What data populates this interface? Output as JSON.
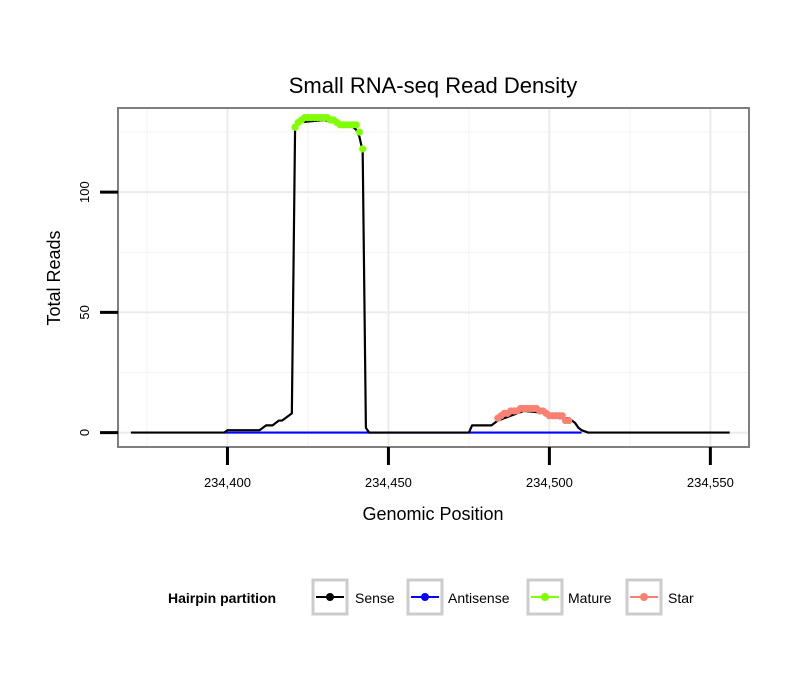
{
  "chart_data": {
    "type": "line",
    "title": "Small RNA-seq Read Density",
    "xlabel": "Genomic Position",
    "ylabel": "Total Reads",
    "xlim": [
      234366,
      234562
    ],
    "ylim": [
      -6,
      135
    ],
    "x_ticks": [
      234400,
      234450,
      234500,
      234550
    ],
    "x_tick_labels": [
      "234,400",
      "234,450",
      "234,500",
      "234,550"
    ],
    "y_ticks": [
      0,
      50,
      100
    ],
    "y_tick_labels": [
      "0",
      "50",
      "100"
    ],
    "x_minor_grid": [
      234375,
      234425,
      234475,
      234525
    ],
    "y_minor_grid": [
      25,
      75,
      125
    ],
    "grid": true,
    "legend": {
      "title": "Hairpin partition",
      "position": "bottom",
      "entries": [
        {
          "label": "Sense",
          "color": "#000000"
        },
        {
          "label": "Antisense",
          "color": "#0000ff"
        },
        {
          "label": "Mature",
          "color": "#7fff00"
        },
        {
          "label": "Star",
          "color": "#fa8072"
        }
      ]
    },
    "series": [
      {
        "name": "Sense",
        "style": "line",
        "color": "#000000",
        "x": [
          234370,
          234399,
          234400,
          234410,
          234412,
          234414,
          234416,
          234417,
          234419,
          234420,
          234421,
          234422,
          234430,
          234438,
          234440,
          234441,
          234442,
          234443,
          234444,
          234475,
          234476,
          234482,
          234484,
          234486,
          234488,
          234490,
          234492,
          234500,
          234503,
          234506,
          234508,
          234509,
          234510,
          234512,
          234556
        ],
        "y": [
          0,
          0,
          1,
          1,
          3,
          3,
          5,
          5,
          7,
          8,
          126,
          129,
          130,
          128,
          126,
          123,
          117,
          2,
          0,
          0,
          3,
          3,
          5,
          6,
          7,
          8,
          9,
          8,
          6,
          6,
          4,
          2,
          1,
          0,
          0
        ]
      },
      {
        "name": "Antisense",
        "style": "line",
        "color": "#0000ff",
        "x": [
          234399,
          234510
        ],
        "y": [
          0,
          0
        ]
      },
      {
        "name": "Mature",
        "style": "points",
        "color": "#7fff00",
        "x": [
          234421,
          234422,
          234423,
          234424,
          234425,
          234426,
          234427,
          234428,
          234429,
          234430,
          234431,
          234432,
          234433,
          234434,
          234435,
          234436,
          234437,
          234438,
          234439,
          234440,
          234441,
          234442
        ],
        "y": [
          127,
          129,
          130,
          131,
          131,
          131,
          131,
          131,
          131,
          131,
          131,
          130,
          130,
          129,
          128,
          128,
          128,
          128,
          128,
          128,
          125,
          118
        ]
      },
      {
        "name": "Star",
        "style": "points",
        "color": "#fa8072",
        "x": [
          234484,
          234485,
          234486,
          234487,
          234488,
          234489,
          234490,
          234491,
          234492,
          234493,
          234494,
          234495,
          234496,
          234497,
          234498,
          234499,
          234500,
          234501,
          234502,
          234503,
          234504,
          234505,
          234506
        ],
        "y": [
          6,
          7,
          8,
          8,
          9,
          9,
          9,
          10,
          10,
          10,
          10,
          10,
          10,
          9,
          9,
          8,
          7,
          7,
          7,
          7,
          7,
          5,
          5
        ]
      }
    ]
  }
}
